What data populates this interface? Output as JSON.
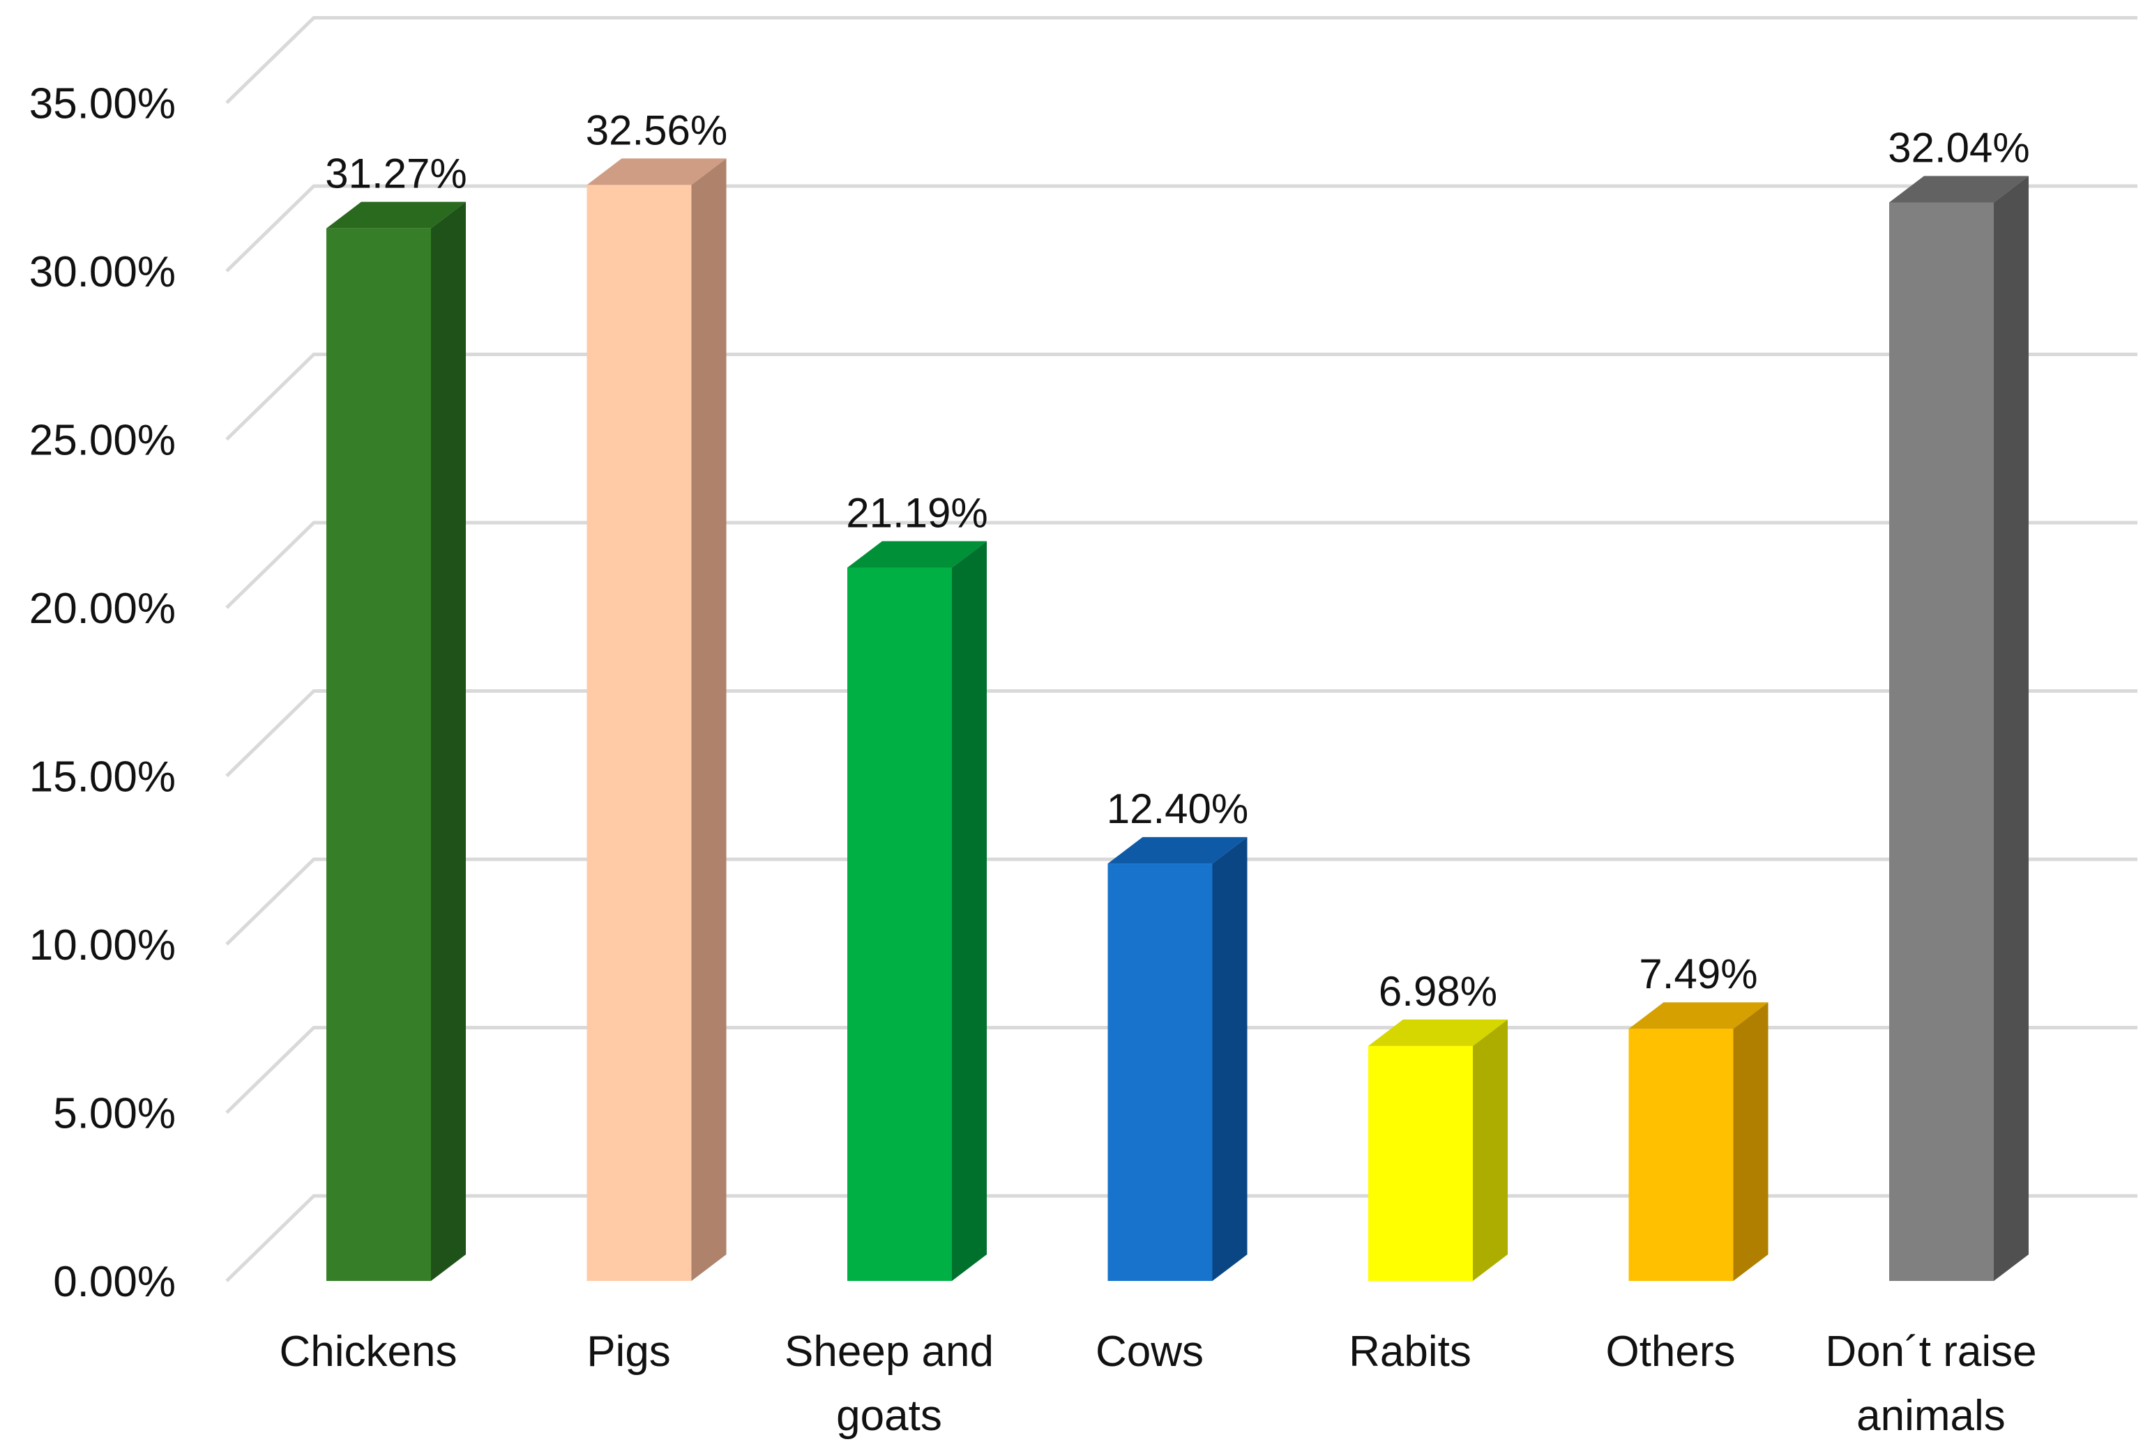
{
  "chart_data": {
    "type": "bar",
    "style": "3d-column",
    "title": "",
    "xlabel": "",
    "ylabel": "",
    "ylim": [
      0,
      35
    ],
    "y_tick_labels": [
      "0.00%",
      "5.00%",
      "10.00%",
      "15.00%",
      "20.00%",
      "25.00%",
      "30.00%",
      "35.00%"
    ],
    "grid": true,
    "legend": "none",
    "categories": [
      [
        "Chickens"
      ],
      [
        "Pigs"
      ],
      [
        "Sheep and",
        "goats"
      ],
      [
        "Cows"
      ],
      [
        "Rabits"
      ],
      [
        "Others"
      ],
      [
        "Don´t raise",
        "animals"
      ]
    ],
    "values": [
      31.27,
      32.56,
      21.19,
      12.4,
      6.98,
      7.49,
      32.04
    ],
    "data_labels": [
      "31.27%",
      "32.56%",
      "21.19%",
      "12.40%",
      "6.98%",
      "7.49%",
      "32.04%"
    ],
    "colors": [
      {
        "front": "#367E28",
        "side": "#1F5219",
        "top": "#2A6A1F"
      },
      {
        "front": "#FFCBA7",
        "side": "#AE826B",
        "top": "#CF9D84"
      },
      {
        "front": "#00B044",
        "side": "#00712C",
        "top": "#009038"
      },
      {
        "front": "#1773CB",
        "side": "#0A4684",
        "top": "#0F5AA6"
      },
      {
        "front": "#FFFF00",
        "side": "#ADAD00",
        "top": "#D6D600"
      },
      {
        "front": "#FFC000",
        "side": "#B07F00",
        "top": "#D6A000"
      },
      {
        "front": "#808080",
        "side": "#505050",
        "top": "#626262"
      }
    ]
  }
}
